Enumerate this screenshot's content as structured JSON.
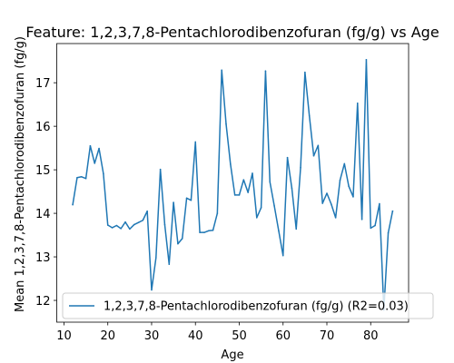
{
  "chart_data": {
    "type": "line",
    "title": "Feature: 1,2,3,7,8-Pentachlorodibenzofuran (fg/g) vs Age",
    "xlabel": "Age",
    "ylabel": "Mean 1,2,3,7,8-Pentachlorodibenzofuran (fg/g)",
    "xlim": [
      8.35,
      88.65
    ],
    "ylim": [
      11.5,
      17.9
    ],
    "xticks": [
      10,
      20,
      30,
      40,
      50,
      60,
      70,
      80
    ],
    "yticks": [
      12,
      13,
      14,
      15,
      16,
      17
    ],
    "grid": false,
    "legend_position": "lower-right",
    "series": [
      {
        "name": "1,2,3,7,8-Pentachlorodibenzofuran (fg/g) (R2=0.03)",
        "color": "#1f77b4",
        "x": [
          12,
          13,
          14,
          15,
          16,
          17,
          18,
          19,
          20,
          21,
          22,
          23,
          24,
          25,
          26,
          27,
          28,
          29,
          30,
          31,
          32,
          33,
          34,
          35,
          36,
          37,
          38,
          39,
          40,
          41,
          42,
          43,
          44,
          45,
          46,
          47,
          48,
          49,
          50,
          51,
          52,
          53,
          54,
          55,
          56,
          57,
          58,
          59,
          60,
          61,
          62,
          63,
          64,
          65,
          66,
          67,
          68,
          69,
          70,
          71,
          72,
          73,
          74,
          75,
          76,
          77,
          78,
          79,
          80,
          81,
          82,
          83,
          84,
          85
        ],
        "y": [
          14.2,
          14.82,
          14.84,
          14.8,
          15.55,
          15.15,
          15.49,
          14.91,
          13.73,
          13.67,
          13.72,
          13.65,
          13.8,
          13.64,
          13.74,
          13.79,
          13.84,
          14.05,
          12.24,
          12.98,
          15.01,
          13.74,
          12.83,
          14.25,
          13.3,
          13.42,
          14.35,
          14.3,
          15.64,
          13.56,
          13.56,
          13.6,
          13.61,
          14.0,
          17.29,
          16.05,
          15.13,
          14.42,
          14.42,
          14.77,
          14.48,
          14.92,
          13.9,
          14.13,
          17.27,
          14.72,
          14.17,
          13.6,
          13.03,
          15.28,
          14.58,
          13.64,
          15.05,
          17.24,
          16.24,
          15.32,
          15.56,
          14.23,
          14.46,
          14.21,
          13.9,
          14.76,
          15.14,
          14.62,
          14.38,
          16.53,
          13.86,
          17.53,
          13.66,
          13.72,
          14.22,
          11.78,
          13.55,
          14.05
        ]
      }
    ]
  }
}
